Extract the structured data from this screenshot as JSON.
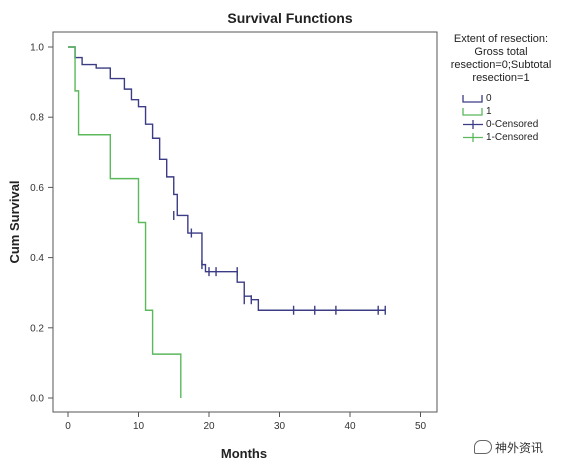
{
  "chart_data": {
    "type": "line",
    "title": "Survival Functions",
    "xlabel": "Months",
    "ylabel": "Cum Survival",
    "xlim": [
      0,
      50
    ],
    "ylim": [
      0,
      1.0
    ],
    "x_ticks": [
      "0",
      "10",
      "20",
      "30",
      "40",
      "50"
    ],
    "y_ticks": [
      "0.0",
      "0.2",
      "0.4",
      "0.6",
      "0.8",
      "1.0"
    ],
    "grid": false,
    "legend": {
      "position": "right",
      "title_lines": [
        "Extent of resection:",
        "Gross total",
        "resection=0;Subtotal",
        "resection=1"
      ],
      "entries": [
        "0",
        "1",
        "0-Censored",
        "1-Censored"
      ]
    },
    "series": [
      {
        "name": "0",
        "color": "#3c3c86",
        "steps": [
          [
            0,
            1.0
          ],
          [
            1,
            0.97
          ],
          [
            2,
            0.95
          ],
          [
            4,
            0.94
          ],
          [
            6,
            0.91
          ],
          [
            8,
            0.88
          ],
          [
            9,
            0.85
          ],
          [
            10,
            0.83
          ],
          [
            11,
            0.78
          ],
          [
            12,
            0.74
          ],
          [
            13,
            0.68
          ],
          [
            14,
            0.63
          ],
          [
            15,
            0.58
          ],
          [
            15.5,
            0.52
          ],
          [
            17,
            0.47
          ],
          [
            19,
            0.38
          ],
          [
            19.5,
            0.36
          ],
          [
            24,
            0.33
          ],
          [
            25,
            0.29
          ],
          [
            26,
            0.28
          ],
          [
            27,
            0.25
          ],
          [
            45,
            0.25
          ]
        ],
        "censored": [
          [
            15,
            0.52
          ],
          [
            17.5,
            0.47
          ],
          [
            19,
            0.38
          ],
          [
            20,
            0.36
          ],
          [
            21,
            0.36
          ],
          [
            24,
            0.36
          ],
          [
            25,
            0.28
          ],
          [
            26,
            0.28
          ],
          [
            32,
            0.25
          ],
          [
            35,
            0.25
          ],
          [
            38,
            0.25
          ],
          [
            44,
            0.25
          ],
          [
            45,
            0.25
          ]
        ]
      },
      {
        "name": "1",
        "color": "#5bb85b",
        "steps": [
          [
            0,
            1.0
          ],
          [
            1,
            0.875
          ],
          [
            1.5,
            0.75
          ],
          [
            6,
            0.625
          ],
          [
            10,
            0.5
          ],
          [
            11,
            0.25
          ],
          [
            12,
            0.125
          ],
          [
            16,
            0.0
          ]
        ],
        "censored": []
      }
    ]
  },
  "watermark": "神外资讯"
}
